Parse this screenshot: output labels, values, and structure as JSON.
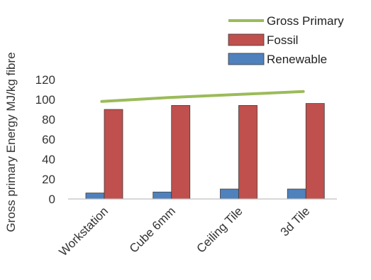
{
  "chart_data": {
    "type": "bar",
    "title": "",
    "xlabel": "",
    "ylabel": "Gross primary  Energy  MJ/kg fibre",
    "ylim": [
      0,
      120
    ],
    "yticks": [
      0,
      20,
      40,
      60,
      80,
      100,
      120
    ],
    "grid": false,
    "legend_position": "top-right",
    "categories": [
      "Workstation",
      "Cube 6mm",
      "Ceiling Tile",
      "3d Tile"
    ],
    "series": [
      {
        "name": "Renewable",
        "kind": "bar",
        "color": "#4f81bd",
        "values": [
          6,
          7,
          10,
          10
        ]
      },
      {
        "name": "Fossil",
        "kind": "bar",
        "color": "#c0504d",
        "values": [
          90,
          94,
          94,
          96
        ]
      },
      {
        "name": "Gross Primary",
        "kind": "line",
        "color": "#9bbb59",
        "values": [
          98,
          102,
          105,
          108
        ]
      }
    ],
    "legend_order": [
      "Gross Primary",
      "Fossil",
      "Renewable"
    ]
  }
}
